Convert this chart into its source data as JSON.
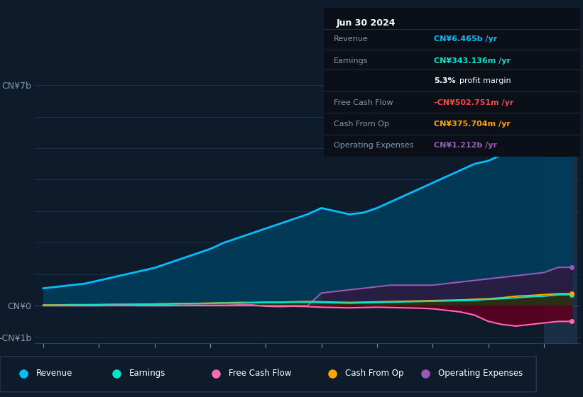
{
  "background_color": "#0d1b2a",
  "plot_bg_color": "#0d1b2a",
  "highlight_bg_color": "#1a2e45",
  "grid_color": "#1e3050",
  "text_color": "#8899aa",
  "years": [
    2015.0,
    2015.25,
    2015.5,
    2015.75,
    2016.0,
    2016.25,
    2016.5,
    2016.75,
    2017.0,
    2017.25,
    2017.5,
    2017.75,
    2018.0,
    2018.25,
    2018.5,
    2018.75,
    2019.0,
    2019.25,
    2019.5,
    2019.75,
    2020.0,
    2020.25,
    2020.5,
    2020.75,
    2021.0,
    2021.25,
    2021.5,
    2021.75,
    2022.0,
    2022.25,
    2022.5,
    2022.75,
    2023.0,
    2023.25,
    2023.5,
    2023.75,
    2024.0,
    2024.25,
    2024.5
  ],
  "revenue": [
    0.55,
    0.6,
    0.65,
    0.7,
    0.8,
    0.9,
    1.0,
    1.1,
    1.2,
    1.35,
    1.5,
    1.65,
    1.8,
    2.0,
    2.15,
    2.3,
    2.45,
    2.6,
    2.75,
    2.9,
    3.1,
    3.0,
    2.9,
    2.95,
    3.1,
    3.3,
    3.5,
    3.7,
    3.9,
    4.1,
    4.3,
    4.5,
    4.6,
    4.8,
    5.2,
    5.6,
    6.0,
    6.46,
    6.5
  ],
  "earnings": [
    0.01,
    0.01,
    0.02,
    0.02,
    0.03,
    0.03,
    0.04,
    0.04,
    0.05,
    0.05,
    0.06,
    0.06,
    0.07,
    0.08,
    0.08,
    0.09,
    0.1,
    0.1,
    0.11,
    0.11,
    0.1,
    0.09,
    0.08,
    0.09,
    0.1,
    0.11,
    0.12,
    0.13,
    0.14,
    0.15,
    0.16,
    0.17,
    0.2,
    0.22,
    0.25,
    0.28,
    0.3,
    0.343,
    0.35
  ],
  "free_cash_flow": [
    0.0,
    0.0,
    0.0,
    0.0,
    0.0,
    0.01,
    0.01,
    0.0,
    0.0,
    0.0,
    0.01,
    0.01,
    0.01,
    0.01,
    0.02,
    0.02,
    -0.02,
    -0.03,
    -0.02,
    -0.03,
    -0.05,
    -0.06,
    -0.07,
    -0.06,
    -0.05,
    -0.06,
    -0.07,
    -0.08,
    -0.1,
    -0.15,
    -0.2,
    -0.3,
    -0.5,
    -0.6,
    -0.65,
    -0.6,
    -0.55,
    -0.503,
    -0.5
  ],
  "cash_from_op": [
    0.02,
    0.02,
    0.03,
    0.03,
    0.03,
    0.04,
    0.04,
    0.05,
    0.05,
    0.06,
    0.07,
    0.07,
    0.08,
    0.09,
    0.1,
    0.1,
    0.11,
    0.11,
    0.12,
    0.13,
    0.12,
    0.11,
    0.1,
    0.11,
    0.12,
    0.13,
    0.14,
    0.15,
    0.16,
    0.17,
    0.18,
    0.2,
    0.22,
    0.25,
    0.3,
    0.32,
    0.35,
    0.376,
    0.38
  ],
  "op_expenses": [
    0.0,
    0.0,
    0.0,
    0.0,
    0.0,
    0.0,
    0.0,
    0.0,
    0.0,
    0.0,
    0.0,
    0.0,
    0.0,
    0.0,
    0.0,
    0.0,
    0.0,
    0.0,
    0.0,
    0.0,
    0.4,
    0.45,
    0.5,
    0.55,
    0.6,
    0.65,
    0.65,
    0.65,
    0.65,
    0.7,
    0.75,
    0.8,
    0.85,
    0.9,
    0.95,
    1.0,
    1.05,
    1.212,
    1.22
  ],
  "revenue_color": "#00bfff",
  "earnings_color": "#00e5cc",
  "fcf_color": "#ff69b4",
  "cashop_color": "#ffa500",
  "opex_color": "#9b59b6",
  "revenue_fill": "#003d5c",
  "earnings_fill": "#004d44",
  "fcf_fill": "#5c0020",
  "cashop_fill": "#3d2800",
  "opex_fill": "#2d1a40",
  "highlight_start": 2024.0,
  "highlight_end": 2024.6,
  "xlim": [
    2014.85,
    2024.65
  ],
  "ylim": [
    -1.2,
    7.5
  ],
  "ytick_labels": [
    "-CN¥1b",
    "CN¥0",
    "CN¥7b"
  ],
  "ytick_vals": [
    -1.0,
    0.0,
    7.0
  ],
  "xticks": [
    2015,
    2016,
    2017,
    2018,
    2019,
    2020,
    2021,
    2022,
    2023,
    2024
  ],
  "legend_items": [
    {
      "label": "Revenue",
      "color": "#00bfff"
    },
    {
      "label": "Earnings",
      "color": "#00e5cc"
    },
    {
      "label": "Free Cash Flow",
      "color": "#ff69b4"
    },
    {
      "label": "Cash From Op",
      "color": "#ffa500"
    },
    {
      "label": "Operating Expenses",
      "color": "#9b59b6"
    }
  ],
  "info_box": {
    "date": "Jun 30 2024",
    "rows": [
      {
        "label": "Revenue",
        "value": "CN¥6.465b /yr",
        "value_color": "#00bfff"
      },
      {
        "label": "Earnings",
        "value": "CN¥343.136m /yr",
        "value_color": "#00e5cc"
      },
      {
        "label": "",
        "value": "profit margin",
        "value_color": "#ffffff",
        "bold_prefix": "5.3%"
      },
      {
        "label": "Free Cash Flow",
        "value": "-CN¥502.751m /yr",
        "value_color": "#ff4444"
      },
      {
        "label": "Cash From Op",
        "value": "CN¥375.704m /yr",
        "value_color": "#ffa500"
      },
      {
        "label": "Operating Expenses",
        "value": "CN¥1.212b /yr",
        "value_color": "#9b59b6"
      }
    ]
  }
}
